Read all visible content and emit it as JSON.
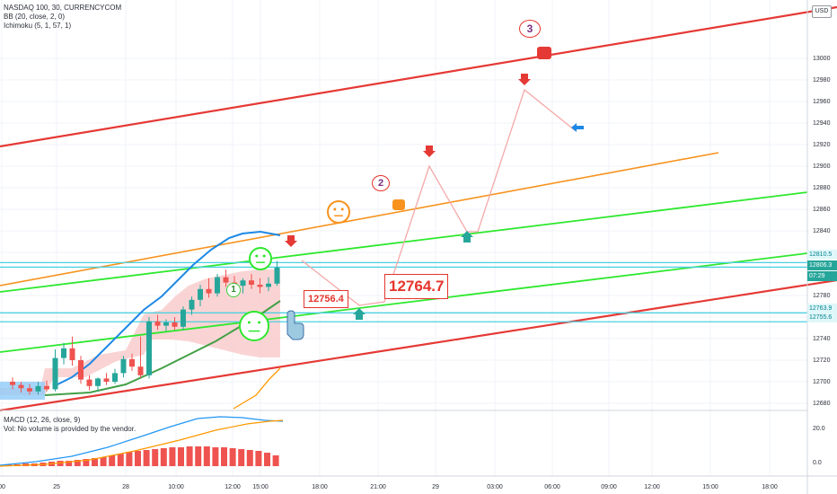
{
  "header": {
    "symbol_line": "NASDAQ 100, 30, CURRENCYCOM",
    "indicator_bb": "BB (20, close, 2, 0)",
    "indicator_ichimoku": "Ichimoku (5, 1, 57, 1)",
    "currency_badge": "USD"
  },
  "macd_pane": {
    "title": "MACD (12, 26, close, 9)",
    "volume_note": "Vol: No volume is provided by the vendor.",
    "y_ticks": [
      "20.0",
      "0.0"
    ]
  },
  "colors": {
    "up_candle": "#26a69a",
    "down_candle": "#ef5350",
    "bb_upper": "#1e88e5",
    "bb_basis": "#43a047",
    "channel_red": "#e53935",
    "channel_orange": "#f7931e",
    "channel_green": "#2ee82e",
    "hline_cyan": "#4dd0e1",
    "cloud_red": "#f8c5c5",
    "cloud_blue": "#90caf9",
    "macd_line": "#2196f3",
    "signal_line": "#ff9800",
    "hist_red": "#ef5350"
  },
  "annotations": {
    "callout_small": "12756.4",
    "callout_big": "12764.7",
    "bubble_1": "1",
    "bubble_2": "2",
    "bubble_3": "3"
  },
  "price_tags": [
    {
      "label": "12810.5",
      "bg": "#e0f7fa",
      "fg": "#00838f"
    },
    {
      "label": "12806.3",
      "bg": "#26a69a",
      "fg": "#ffffff"
    },
    {
      "label": "07:29",
      "bg": "#26a69a",
      "fg": "#ffffff"
    },
    {
      "label": "12763.9",
      "bg": "#e0f7fa",
      "fg": "#00838f"
    },
    {
      "label": "12755.6",
      "bg": "#e0f7fa",
      "fg": "#00838f"
    }
  ],
  "chart_data": {
    "type": "candlestick",
    "title": "NASDAQ 100, 30, CURRENCYCOM",
    "y_ticks": [
      13000,
      12980,
      12960,
      12940,
      12920,
      12900,
      12880,
      12860,
      12840,
      12820,
      12780,
      12760,
      12740,
      12720,
      12700,
      12680
    ],
    "ylim": [
      12672,
      13013
    ],
    "x_ticks": [
      "00",
      "25",
      "28",
      "10:00",
      "12:00",
      "15:00",
      "18:00",
      "21:00",
      "29",
      "03:00",
      "06:00",
      "09:00",
      "12:00",
      "15:00",
      "18:00"
    ],
    "horizontal_levels": [
      12810.5,
      12806.3,
      12763.9,
      12755.6
    ],
    "candles": [
      {
        "o": 12700,
        "h": 12704,
        "l": 12693,
        "c": 12697
      },
      {
        "o": 12697,
        "h": 12700,
        "l": 12690,
        "c": 12694
      },
      {
        "o": 12694,
        "h": 12698,
        "l": 12688,
        "c": 12691
      },
      {
        "o": 12691,
        "h": 12700,
        "l": 12688,
        "c": 12696
      },
      {
        "o": 12696,
        "h": 12701,
        "l": 12691,
        "c": 12693
      },
      {
        "o": 12693,
        "h": 12730,
        "l": 12691,
        "c": 12722
      },
      {
        "o": 12722,
        "h": 12736,
        "l": 12716,
        "c": 12731
      },
      {
        "o": 12731,
        "h": 12742,
        "l": 12715,
        "c": 12720
      },
      {
        "o": 12720,
        "h": 12724,
        "l": 12698,
        "c": 12702
      },
      {
        "o": 12702,
        "h": 12706,
        "l": 12692,
        "c": 12696
      },
      {
        "o": 12696,
        "h": 12704,
        "l": 12691,
        "c": 12703
      },
      {
        "o": 12703,
        "h": 12708,
        "l": 12697,
        "c": 12700
      },
      {
        "o": 12700,
        "h": 12712,
        "l": 12698,
        "c": 12708
      },
      {
        "o": 12708,
        "h": 12724,
        "l": 12704,
        "c": 12721
      },
      {
        "o": 12721,
        "h": 12726,
        "l": 12710,
        "c": 12714
      },
      {
        "o": 12714,
        "h": 12742,
        "l": 12704,
        "c": 12706
      },
      {
        "o": 12706,
        "h": 12760,
        "l": 12703,
        "c": 12756
      },
      {
        "o": 12756,
        "h": 12762,
        "l": 12748,
        "c": 12752
      },
      {
        "o": 12752,
        "h": 12758,
        "l": 12747,
        "c": 12755
      },
      {
        "o": 12755,
        "h": 12760,
        "l": 12748,
        "c": 12751
      },
      {
        "o": 12751,
        "h": 12770,
        "l": 12748,
        "c": 12767
      },
      {
        "o": 12767,
        "h": 12779,
        "l": 12762,
        "c": 12776
      },
      {
        "o": 12776,
        "h": 12790,
        "l": 12770,
        "c": 12786
      },
      {
        "o": 12786,
        "h": 12796,
        "l": 12778,
        "c": 12782
      },
      {
        "o": 12782,
        "h": 12800,
        "l": 12779,
        "c": 12797
      },
      {
        "o": 12797,
        "h": 12804,
        "l": 12788,
        "c": 12792
      },
      {
        "o": 12792,
        "h": 12798,
        "l": 12784,
        "c": 12789
      },
      {
        "o": 12789,
        "h": 12796,
        "l": 12782,
        "c": 12794
      },
      {
        "o": 12794,
        "h": 12800,
        "l": 12786,
        "c": 12790
      },
      {
        "o": 12790,
        "h": 12796,
        "l": 12782,
        "c": 12788
      },
      {
        "o": 12788,
        "h": 12797,
        "l": 12784,
        "c": 12791
      },
      {
        "o": 12791,
        "h": 12812,
        "l": 12789,
        "c": 12806
      }
    ]
  }
}
